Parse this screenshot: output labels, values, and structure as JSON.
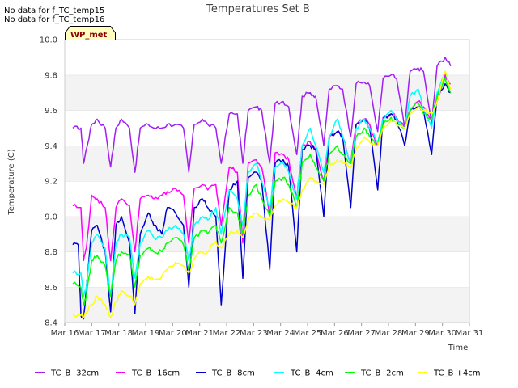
{
  "notices": [
    "No data for f_TC_temp15",
    "No data for f_TC_temp16"
  ],
  "badge": "WP_met",
  "chart_data": {
    "type": "line",
    "title": "Temperatures Set B",
    "xlabel": "Time",
    "ylabel": "Temperature (C)",
    "ylim": [
      8.4,
      10.0
    ],
    "yticks": [
      "8.4",
      "8.6",
      "8.8",
      "9.0",
      "9.2",
      "9.4",
      "9.6",
      "9.8",
      "10.0"
    ],
    "xlim": [
      16,
      31
    ],
    "xticks": [
      {
        "day": 16,
        "label": "Mar 16"
      },
      {
        "day": 17,
        "label": "Mar 17"
      },
      {
        "day": 18,
        "label": "Mar 18"
      },
      {
        "day": 19,
        "label": "Mar 19"
      },
      {
        "day": 20,
        "label": "Mar 20"
      },
      {
        "day": 21,
        "label": "Mar 21"
      },
      {
        "day": 22,
        "label": "Mar 22"
      },
      {
        "day": 23,
        "label": "Mar 23"
      },
      {
        "day": 24,
        "label": "Mar 24"
      },
      {
        "day": 25,
        "label": "Mar 25"
      },
      {
        "day": 26,
        "label": "Mar 26"
      },
      {
        "day": 27,
        "label": "Mar 27"
      },
      {
        "day": 28,
        "label": "Mar 28"
      },
      {
        "day": 29,
        "label": "Mar 29"
      },
      {
        "day": 30,
        "label": "Mar 30"
      },
      {
        "day": 31,
        "label": "Mar 31"
      }
    ],
    "grid": "horizontal bands",
    "legend_position": "bottom",
    "series": [
      {
        "name": "TC_B -32cm",
        "color": "#a020f0",
        "x": [
          16.3,
          16.6,
          16.7,
          16.8,
          17.0,
          17.2,
          17.5,
          17.7,
          17.9,
          18.1,
          18.4,
          18.6,
          18.8,
          19.1,
          19.3,
          19.6,
          19.8,
          20.1,
          20.4,
          20.6,
          20.8,
          21.1,
          21.3,
          21.6,
          21.8,
          22.1,
          22.4,
          22.6,
          22.8,
          23.1,
          23.3,
          23.6,
          23.8,
          24.1,
          24.3,
          24.6,
          24.8,
          25.1,
          25.3,
          25.6,
          25.8,
          26.1,
          26.3,
          26.6,
          26.8,
          27.1,
          27.3,
          27.6,
          27.8,
          28.1,
          28.3,
          28.6,
          28.8,
          29.1,
          29.3,
          29.6,
          29.8,
          30.1,
          30.3
        ],
        "y": [
          9.5,
          9.5,
          9.3,
          9.38,
          9.52,
          9.55,
          9.5,
          9.28,
          9.5,
          9.55,
          9.5,
          9.25,
          9.5,
          9.52,
          9.5,
          9.5,
          9.52,
          9.52,
          9.5,
          9.25,
          9.52,
          9.55,
          9.52,
          9.5,
          9.3,
          9.58,
          9.58,
          9.3,
          9.6,
          9.62,
          9.6,
          9.3,
          9.64,
          9.65,
          9.62,
          9.35,
          9.68,
          9.7,
          9.68,
          9.4,
          9.72,
          9.74,
          9.72,
          9.45,
          9.75,
          9.76,
          9.74,
          9.48,
          9.78,
          9.8,
          9.78,
          9.5,
          9.82,
          9.84,
          9.82,
          9.52,
          9.85,
          9.9,
          9.85
        ]
      },
      {
        "name": "TC_B -16cm",
        "color": "#ff00ff",
        "x": [
          16.3,
          16.6,
          16.7,
          16.8,
          17.0,
          17.2,
          17.5,
          17.7,
          17.9,
          18.1,
          18.4,
          18.6,
          18.8,
          19.1,
          19.3,
          19.6,
          19.8,
          20.1,
          20.4,
          20.6,
          20.8,
          21.1,
          21.3,
          21.6,
          21.8,
          22.1,
          22.4,
          22.6,
          22.8,
          23.1,
          23.3,
          23.6,
          23.8,
          24.1,
          24.3,
          24.6,
          24.8,
          25.1,
          25.3,
          25.6,
          25.8,
          26.1,
          26.3,
          26.6,
          26.8,
          27.1,
          27.3,
          27.6,
          27.8,
          28.1,
          28.3,
          28.6,
          28.8,
          29.1,
          29.3,
          29.6,
          29.8,
          30.1,
          30.3
        ],
        "y": [
          9.06,
          9.05,
          8.75,
          8.82,
          9.12,
          9.1,
          9.05,
          8.75,
          9.05,
          9.1,
          9.06,
          8.8,
          9.1,
          9.12,
          9.1,
          9.12,
          9.14,
          9.16,
          9.12,
          8.85,
          9.16,
          9.18,
          9.15,
          9.18,
          8.95,
          9.28,
          9.25,
          8.85,
          9.3,
          9.32,
          9.28,
          9.0,
          9.36,
          9.35,
          9.32,
          9.1,
          9.4,
          9.42,
          9.38,
          9.2,
          9.45,
          9.48,
          9.45,
          9.3,
          9.52,
          9.55,
          9.52,
          9.4,
          9.56,
          9.58,
          9.56,
          9.5,
          9.6,
          9.65,
          9.62,
          9.55,
          9.65,
          9.8,
          9.75
        ]
      },
      {
        "name": "TC_B -8cm",
        "color": "#0000cd",
        "x": [
          16.3,
          16.5,
          16.6,
          16.7,
          16.8,
          17.0,
          17.2,
          17.5,
          17.7,
          17.9,
          18.1,
          18.4,
          18.6,
          18.8,
          19.1,
          19.3,
          19.6,
          19.8,
          20.1,
          20.4,
          20.6,
          20.8,
          21.1,
          21.3,
          21.6,
          21.8,
          22.1,
          22.4,
          22.6,
          22.8,
          23.1,
          23.3,
          23.6,
          23.8,
          24.1,
          24.3,
          24.6,
          24.8,
          25.1,
          25.3,
          25.6,
          25.8,
          26.1,
          26.3,
          26.6,
          26.8,
          27.1,
          27.3,
          27.6,
          27.8,
          28.1,
          28.3,
          28.6,
          28.8,
          29.1,
          29.3,
          29.6,
          29.8,
          30.1,
          30.3
        ],
        "y": [
          8.84,
          8.84,
          8.44,
          8.42,
          8.6,
          8.92,
          8.95,
          8.8,
          8.46,
          8.95,
          9.0,
          8.85,
          8.45,
          8.9,
          9.02,
          8.95,
          8.9,
          9.05,
          9.02,
          8.95,
          8.6,
          9.05,
          9.1,
          9.05,
          9.0,
          8.5,
          9.15,
          9.2,
          8.65,
          9.22,
          9.25,
          9.2,
          8.7,
          9.3,
          9.32,
          9.28,
          8.8,
          9.38,
          9.4,
          9.38,
          9.0,
          9.45,
          9.48,
          9.45,
          9.05,
          9.52,
          9.55,
          9.5,
          9.15,
          9.55,
          9.58,
          9.55,
          9.4,
          9.6,
          9.62,
          9.6,
          9.35,
          9.68,
          9.75,
          9.7
        ]
      },
      {
        "name": "TC_B -4cm",
        "color": "#00ffff",
        "x": [
          16.3,
          16.6,
          16.7,
          16.8,
          17.0,
          17.2,
          17.5,
          17.7,
          17.9,
          18.1,
          18.4,
          18.6,
          18.8,
          19.1,
          19.3,
          19.6,
          19.8,
          20.1,
          20.4,
          20.6,
          20.8,
          21.1,
          21.3,
          21.6,
          21.8,
          22.1,
          22.4,
          22.6,
          22.8,
          23.1,
          23.3,
          23.6,
          23.8,
          24.1,
          24.3,
          24.6,
          24.8,
          25.1,
          25.3,
          25.6,
          25.8,
          26.1,
          26.3,
          26.6,
          26.8,
          27.1,
          27.3,
          27.6,
          27.8,
          28.1,
          28.3,
          28.6,
          28.8,
          29.1,
          29.3,
          29.6,
          29.8,
          30.1,
          30.3
        ],
        "y": [
          8.68,
          8.68,
          8.55,
          8.6,
          8.85,
          8.9,
          8.82,
          8.55,
          8.85,
          8.9,
          8.88,
          8.65,
          8.85,
          8.92,
          8.88,
          8.88,
          8.92,
          8.95,
          8.9,
          8.75,
          8.95,
          9.0,
          8.98,
          9.05,
          8.9,
          9.15,
          9.1,
          8.95,
          9.25,
          9.3,
          9.2,
          9.05,
          9.28,
          9.3,
          9.25,
          9.1,
          9.4,
          9.5,
          9.4,
          9.25,
          9.45,
          9.55,
          9.45,
          9.3,
          9.5,
          9.55,
          9.5,
          9.42,
          9.55,
          9.6,
          9.55,
          9.5,
          9.68,
          9.72,
          9.6,
          9.5,
          9.7,
          9.82,
          9.72
        ]
      },
      {
        "name": "TC_B -2cm",
        "color": "#00ff00",
        "x": [
          16.3,
          16.6,
          16.7,
          16.8,
          17.0,
          17.2,
          17.5,
          17.7,
          17.9,
          18.1,
          18.4,
          18.6,
          18.8,
          19.1,
          19.3,
          19.6,
          19.8,
          20.1,
          20.4,
          20.6,
          20.8,
          21.1,
          21.3,
          21.6,
          21.8,
          22.1,
          22.4,
          22.6,
          22.8,
          23.1,
          23.3,
          23.6,
          23.8,
          24.1,
          24.3,
          24.6,
          24.8,
          25.1,
          25.3,
          25.6,
          25.8,
          26.1,
          26.3,
          26.6,
          26.8,
          27.1,
          27.3,
          27.6,
          27.8,
          28.1,
          28.3,
          28.6,
          28.8,
          29.1,
          29.3,
          29.6,
          29.8,
          30.1,
          30.3
        ],
        "y": [
          8.62,
          8.6,
          8.5,
          8.55,
          8.75,
          8.78,
          8.72,
          8.55,
          8.75,
          8.8,
          8.78,
          8.6,
          8.78,
          8.82,
          8.8,
          8.8,
          8.85,
          8.88,
          8.84,
          8.7,
          8.88,
          8.92,
          8.9,
          8.95,
          8.85,
          9.05,
          9.02,
          8.9,
          9.12,
          9.18,
          9.1,
          9.0,
          9.2,
          9.22,
          9.18,
          9.05,
          9.3,
          9.35,
          9.28,
          9.2,
          9.35,
          9.4,
          9.35,
          9.3,
          9.45,
          9.5,
          9.45,
          9.4,
          9.52,
          9.56,
          9.52,
          9.5,
          9.6,
          9.64,
          9.58,
          9.55,
          9.68,
          9.78,
          9.7
        ]
      },
      {
        "name": "TC_B +4cm",
        "color": "#ffff00",
        "x": [
          16.3,
          16.6,
          16.7,
          16.8,
          17.0,
          17.2,
          17.5,
          17.7,
          17.9,
          18.1,
          18.4,
          18.6,
          18.8,
          19.1,
          19.3,
          19.6,
          19.8,
          20.1,
          20.4,
          20.6,
          20.8,
          21.1,
          21.3,
          21.6,
          21.8,
          22.1,
          22.4,
          22.6,
          22.8,
          23.1,
          23.3,
          23.6,
          23.8,
          24.1,
          24.3,
          24.6,
          24.8,
          25.1,
          25.3,
          25.6,
          25.8,
          26.1,
          26.3,
          26.6,
          26.8,
          27.1,
          27.3,
          27.6,
          27.8,
          28.1,
          28.3,
          28.6,
          28.8,
          29.1,
          29.3,
          29.6,
          29.8,
          30.1,
          30.3
        ],
        "y": [
          8.45,
          8.44,
          8.43,
          8.46,
          8.5,
          8.55,
          8.5,
          8.43,
          8.52,
          8.58,
          8.55,
          8.5,
          8.62,
          8.66,
          8.64,
          8.66,
          8.7,
          8.74,
          8.72,
          8.68,
          8.76,
          8.8,
          8.8,
          8.86,
          8.82,
          8.9,
          8.92,
          8.88,
          8.98,
          9.02,
          9.0,
          8.98,
          9.06,
          9.1,
          9.08,
          9.05,
          9.15,
          9.22,
          9.2,
          9.18,
          9.28,
          9.32,
          9.3,
          9.28,
          9.38,
          9.45,
          9.42,
          9.4,
          9.5,
          9.55,
          9.52,
          9.5,
          9.58,
          9.62,
          9.6,
          9.58,
          9.65,
          9.82,
          9.72
        ]
      }
    ]
  }
}
